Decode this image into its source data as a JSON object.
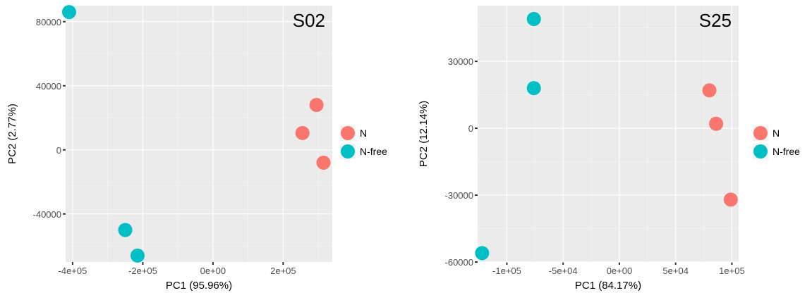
{
  "chart_data": [
    {
      "type": "scatter",
      "panel_label": "S02",
      "xlabel": "PC1 (95.96%)",
      "ylabel": "PC2 (2.77%)",
      "xlim": [
        -420000,
        340000
      ],
      "ylim": [
        -70000,
        90000
      ],
      "x_ticks": [
        {
          "value": -400000,
          "label": "-4e+05"
        },
        {
          "value": -200000,
          "label": "-2e+05"
        },
        {
          "value": 0,
          "label": "0e+00"
        },
        {
          "value": 200000,
          "label": "2e+05"
        }
      ],
      "y_ticks": [
        {
          "value": -40000,
          "label": "-40000"
        },
        {
          "value": 0,
          "label": "0"
        },
        {
          "value": 40000,
          "label": "40000"
        },
        {
          "value": 80000,
          "label": "80000"
        }
      ],
      "grid": true,
      "series": [
        {
          "name": "N",
          "color": "#F8766D",
          "points": [
            [
              295000,
              28000
            ],
            [
              255000,
              10500
            ],
            [
              315000,
              -8000
            ]
          ]
        },
        {
          "name": "N-free",
          "color": "#00BFC4",
          "points": [
            [
              -410000,
              86000
            ],
            [
              -250000,
              -50000
            ],
            [
              -215000,
              -66000
            ]
          ]
        }
      ],
      "legend": [
        {
          "label": "N",
          "color": "#F8766D"
        },
        {
          "label": "N-free",
          "color": "#00BFC4"
        }
      ],
      "legend_position": "right"
    },
    {
      "type": "scatter",
      "panel_label": "S25",
      "xlabel": "PC1 (84.17%)",
      "ylabel": "PC2 (12.14%)",
      "xlim": [
        -126000,
        106000
      ],
      "ylim": [
        -60000,
        55000
      ],
      "x_ticks": [
        {
          "value": -100000,
          "label": "-1e+05"
        },
        {
          "value": -50000,
          "label": "-5e+04"
        },
        {
          "value": 0,
          "label": "0e+00"
        },
        {
          "value": 50000,
          "label": "5e+04"
        },
        {
          "value": 100000,
          "label": "1e+05"
        }
      ],
      "y_ticks": [
        {
          "value": -60000,
          "label": "-60000"
        },
        {
          "value": -30000,
          "label": "-30000"
        },
        {
          "value": 0,
          "label": "0"
        },
        {
          "value": 30000,
          "label": "30000"
        }
      ],
      "grid": true,
      "series": [
        {
          "name": "N",
          "color": "#F8766D",
          "points": [
            [
              80000,
              17000
            ],
            [
              86000,
              2000
            ],
            [
              99000,
              -32000
            ]
          ]
        },
        {
          "name": "N-free",
          "color": "#00BFC4",
          "points": [
            [
              -76000,
              49000
            ],
            [
              -76000,
              18000
            ],
            [
              -122000,
              -56000
            ]
          ]
        }
      ],
      "legend": [
        {
          "label": "N",
          "color": "#F8766D"
        },
        {
          "label": "N-free",
          "color": "#00BFC4"
        }
      ],
      "legend_position": "right"
    }
  ]
}
